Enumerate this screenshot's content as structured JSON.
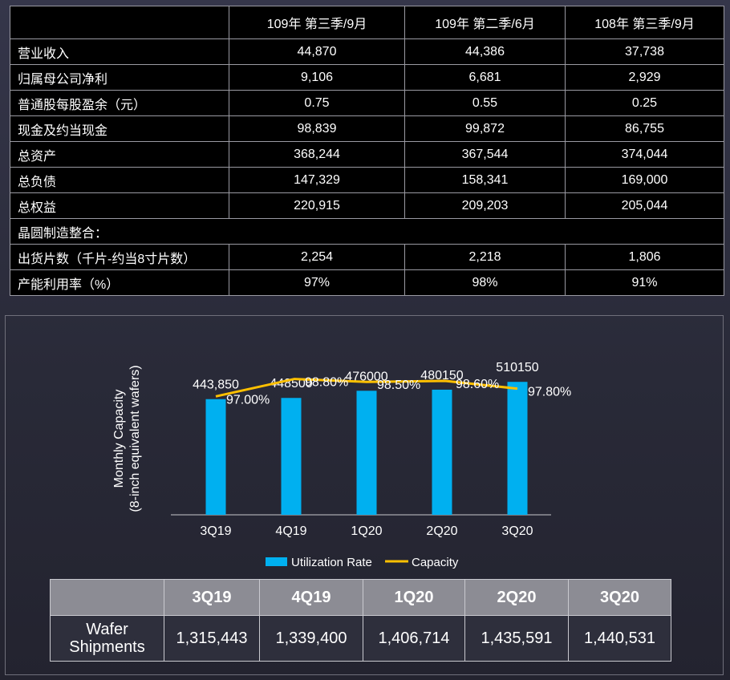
{
  "financial_table": {
    "headers": [
      "",
      "109年 第三季/9月",
      "109年 第二季/6月",
      "108年 第三季/9月"
    ],
    "rows": [
      {
        "label": "营业收入",
        "values": [
          "44,870",
          "44,386",
          "37,738"
        ]
      },
      {
        "label": "归属母公司净利",
        "values": [
          "9,106",
          "6,681",
          "2,929"
        ]
      },
      {
        "label": "普通股每股盈余（元）",
        "values": [
          "0.75",
          "0.55",
          "0.25"
        ]
      },
      {
        "label": "现金及约当现金",
        "values": [
          "98,839",
          "99,872",
          "86,755"
        ]
      },
      {
        "label": "总资产",
        "values": [
          "368,244",
          "367,544",
          "374,044"
        ]
      },
      {
        "label": "总负债",
        "values": [
          "147,329",
          "158,341",
          "169,000"
        ]
      },
      {
        "label": "总权益",
        "values": [
          "220,915",
          "209,203",
          "205,044"
        ]
      }
    ],
    "section_label": "晶圆制造整合：",
    "section_rows": [
      {
        "label": "出货片数（千片-约当8寸片数）",
        "values": [
          "2,254",
          "2,218",
          "1,806"
        ]
      },
      {
        "label": "产能利用率（%）",
        "values": [
          "97%",
          "98%",
          "91%"
        ]
      }
    ]
  },
  "chart_data": {
    "type": "bar",
    "categories": [
      "3Q19",
      "4Q19",
      "1Q20",
      "2Q20",
      "3Q20"
    ],
    "ylabel_line1": "Monthly Capacity",
    "ylabel_line2": "(8-inch equivalent wafers)",
    "ylim": [
      0,
      1200000
    ],
    "series": [
      {
        "name": "Utilization Rate",
        "kind": "bar",
        "color": "#00b0f0",
        "values": [
          443850,
          448500,
          476000,
          480150,
          510150
        ],
        "labels": [
          "443,850",
          "448500",
          "476000",
          "480150",
          "510150"
        ]
      },
      {
        "name": "Capacity",
        "kind": "line",
        "color": "#ffc000",
        "values": [
          97.0,
          98.8,
          98.5,
          98.6,
          97.8
        ],
        "labels": [
          "97.00%",
          "98.80%",
          "98.50%",
          "98.60%",
          "97.80%"
        ],
        "ylim": [
          85,
          102
        ]
      }
    ],
    "legend_position": "bottom"
  },
  "shipments_table": {
    "headers": [
      "",
      "3Q19",
      "4Q19",
      "1Q20",
      "2Q20",
      "3Q20"
    ],
    "row_label_line1": "Wafer",
    "row_label_line2": "Shipments",
    "values": [
      "1,315,443",
      "1,339,400",
      "1,406,714",
      "1,435,591",
      "1,440,531"
    ]
  },
  "colors": {
    "table_bg": "#000000",
    "table_border": "#9a9aa2",
    "bar": "#00b0f0",
    "line": "#ffc000",
    "ship_header_bg": "#8c8c94"
  }
}
